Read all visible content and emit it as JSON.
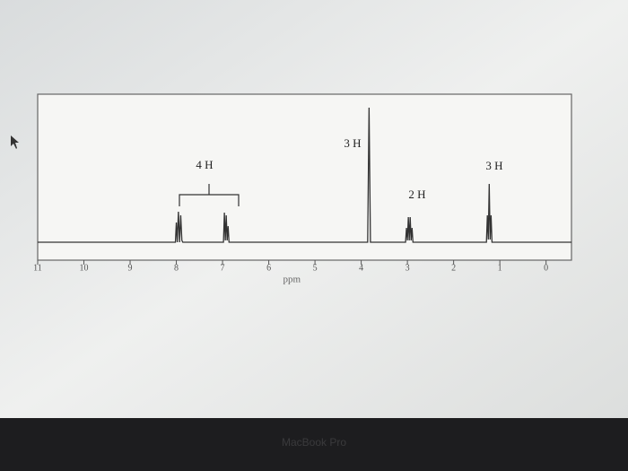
{
  "chart_data": {
    "type": "line",
    "x_label": "ppm",
    "x": [
      11,
      8.02,
      8.0,
      7.98,
      7.955,
      7.93,
      7.905,
      7.88,
      7.86,
      6.98,
      6.96,
      6.94,
      6.92,
      6.9,
      6.88,
      6.86,
      3.86,
      3.83,
      3.8,
      3.04,
      3.02,
      3.0,
      2.98,
      2.96,
      2.94,
      2.92,
      2.9,
      2.88,
      1.29,
      1.27,
      1.25,
      1.23,
      1.21,
      1.19,
      1.17,
      -0.55
    ],
    "values": [
      0,
      0,
      22,
      0,
      34,
      0,
      30,
      2,
      0,
      0,
      33,
      2,
      30,
      2,
      18,
      0,
      0,
      150,
      0,
      0,
      16,
      2,
      28,
      2,
      28,
      2,
      16,
      0,
      0,
      30,
      3,
      65,
      3,
      30,
      0,
      0
    ],
    "color": "#333333",
    "xlim": [
      11,
      -0.55
    ],
    "ylim": [
      0,
      165
    ],
    "xticks": [
      11,
      10,
      9,
      8,
      7,
      6,
      5,
      4,
      3,
      2,
      1,
      0
    ],
    "annotations": [
      "4 H",
      "3 H",
      "2 H",
      "3 H"
    ]
  },
  "device_label": "MacBook Pro"
}
